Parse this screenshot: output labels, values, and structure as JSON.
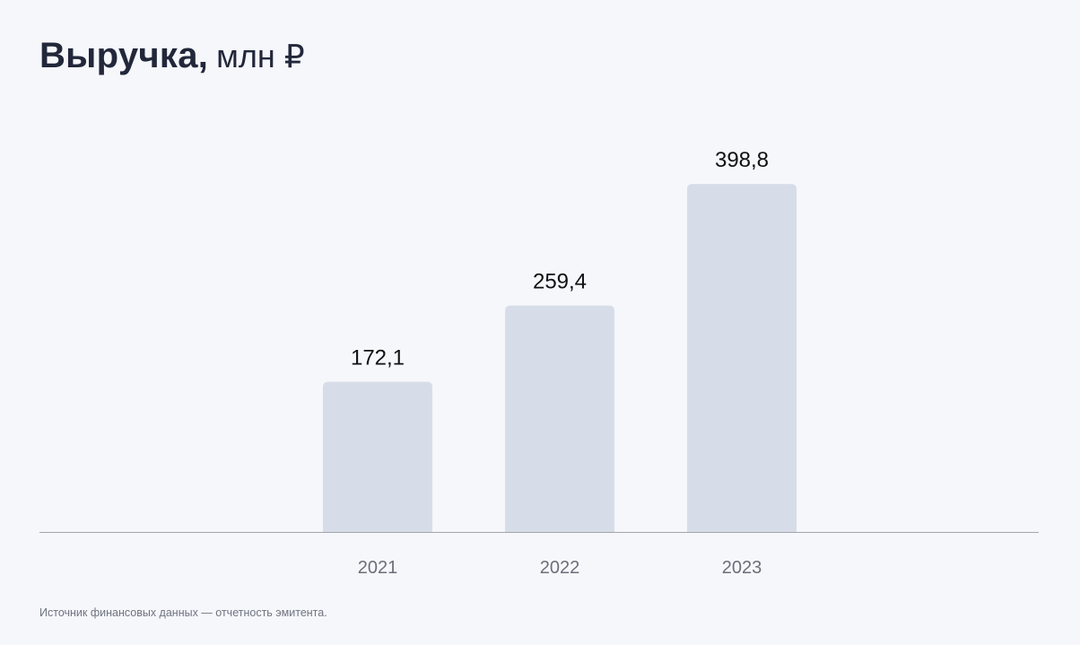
{
  "chart_data": {
    "type": "bar",
    "title": "Выручка,",
    "subtitle": "млн ₽",
    "categories": [
      "2021",
      "2022",
      "2023"
    ],
    "values": [
      172.1,
      259.4,
      398.8
    ],
    "value_labels": [
      "172,1",
      "259,4",
      "398,8"
    ],
    "xlabel": "",
    "ylabel": "",
    "ylim": [
      0,
      440
    ],
    "grid": false,
    "legend": "none",
    "colors": {
      "bar": "#d7dde8",
      "value_text": "#111111",
      "tick_text": "#6c6f78",
      "baseline": "#a4a6ad",
      "background": "#f5f7fb"
    }
  },
  "source_note": "Источник финансовых данных — отчетность эмитента."
}
